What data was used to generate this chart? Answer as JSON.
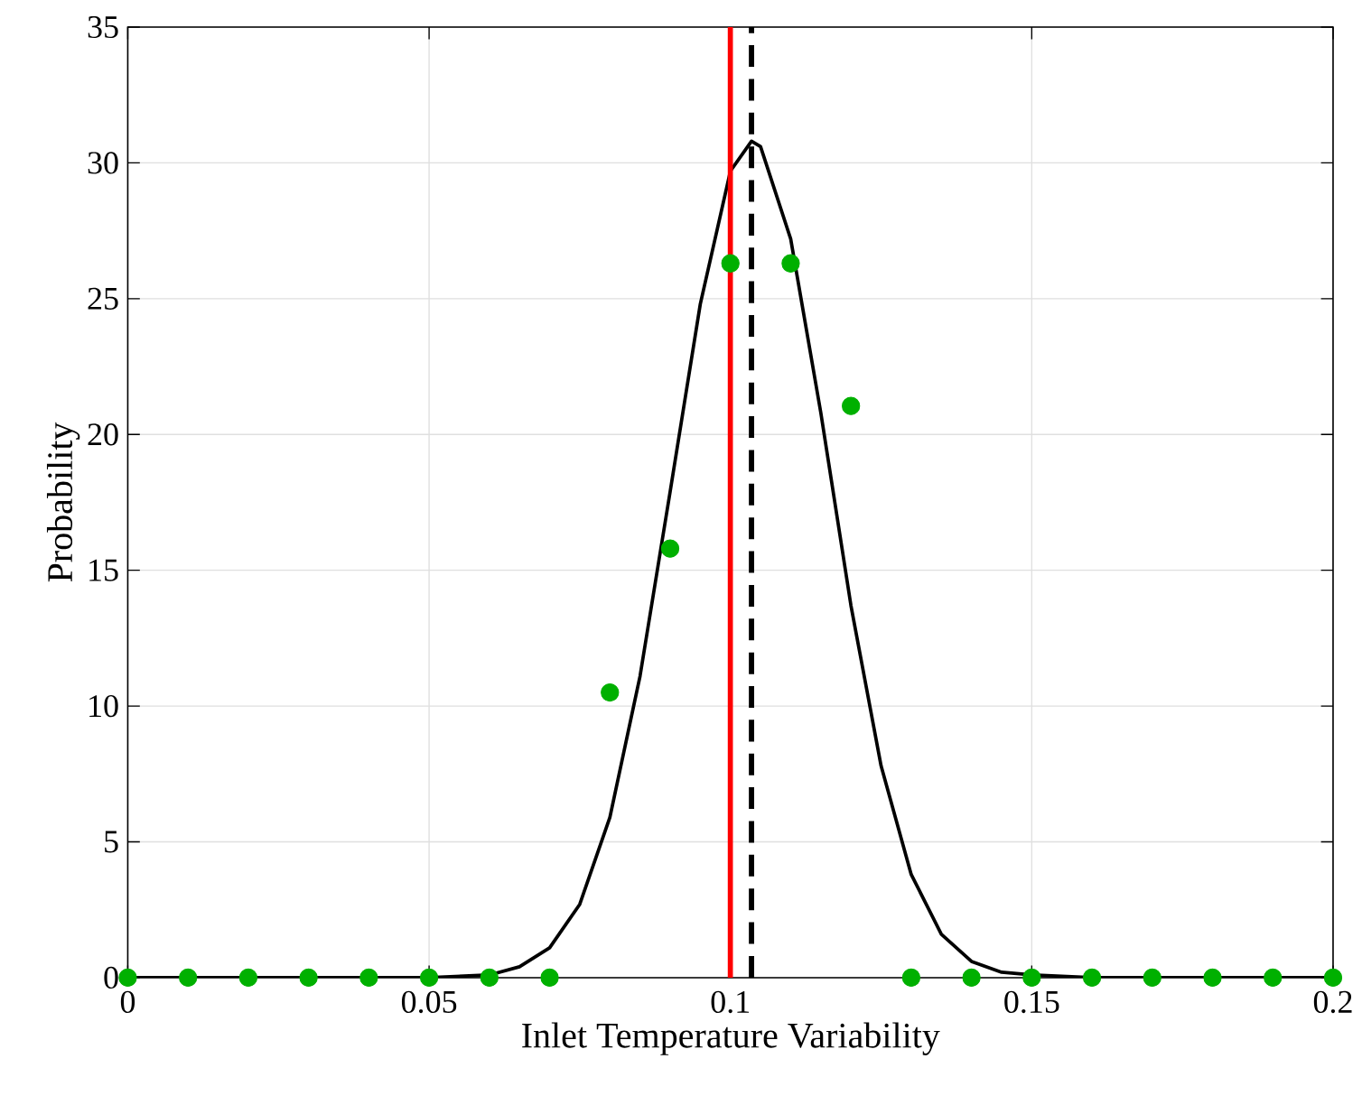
{
  "chart_data": {
    "type": "line",
    "xlabel": "Inlet Temperature Variability",
    "ylabel": "Probability",
    "xlim": [
      0,
      0.2
    ],
    "ylim": [
      0,
      35
    ],
    "xticks": [
      0,
      0.05,
      0.1,
      0.15,
      0.2
    ],
    "yticks": [
      0,
      5,
      10,
      15,
      20,
      25,
      30,
      35
    ],
    "grid": true,
    "series": [
      {
        "color": "#000000",
        "marker": "none",
        "line_style": "solid",
        "x": [
          0,
          0.04,
          0.05,
          0.06,
          0.065,
          0.07,
          0.075,
          0.08,
          0.085,
          0.09,
          0.095,
          0.1,
          0.1035,
          0.105,
          0.11,
          0.115,
          0.12,
          0.125,
          0.13,
          0.135,
          0.14,
          0.145,
          0.15,
          0.16,
          0.2
        ],
        "values": [
          0,
          0,
          0,
          0.1,
          0.4,
          1.1,
          2.7,
          5.9,
          11.1,
          17.9,
          24.8,
          29.7,
          30.8,
          30.6,
          27.2,
          20.8,
          13.7,
          7.8,
          3.8,
          1.6,
          0.6,
          0.2,
          0.1,
          0,
          0
        ]
      },
      {
        "type": "scatter",
        "color": "#00b000",
        "marker": "circle",
        "x": [
          0,
          0.01,
          0.02,
          0.03,
          0.04,
          0.05,
          0.06,
          0.07,
          0.08,
          0.09,
          0.1,
          0.11,
          0.12,
          0.13,
          0.14,
          0.15,
          0.16,
          0.17,
          0.18,
          0.19,
          0.2
        ],
        "values": [
          0,
          0,
          0,
          0,
          0,
          0,
          0,
          0,
          10.5,
          15.8,
          26.3,
          26.3,
          21.05,
          0,
          0,
          0,
          0,
          0,
          0,
          0,
          0
        ]
      }
    ],
    "ref_lines": [
      {
        "axis": "x",
        "value": 0.1,
        "color": "#ff0000",
        "line_style": "solid"
      },
      {
        "axis": "x",
        "value": 0.1035,
        "color": "#000000",
        "line_style": "dashed"
      }
    ]
  }
}
